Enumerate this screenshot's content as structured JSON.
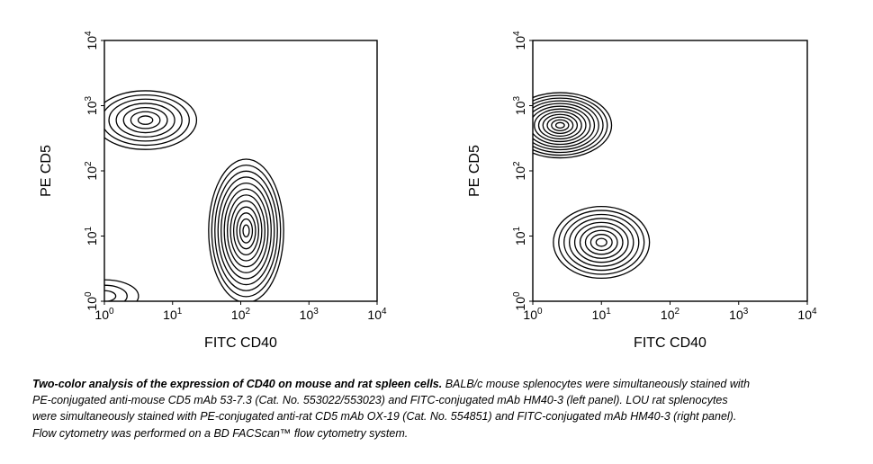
{
  "chart_data": [
    {
      "type": "contour",
      "panel": "left",
      "xlabel": "FITC CD40",
      "ylabel": "PE CD5",
      "x_scale": "log",
      "y_scale": "log",
      "xlim": [
        1,
        10000
      ],
      "ylim": [
        1,
        10000
      ],
      "x_ticks": [
        {
          "base": "10",
          "exp": "0",
          "value": 1
        },
        {
          "base": "10",
          "exp": "1",
          "value": 10
        },
        {
          "base": "10",
          "exp": "2",
          "value": 100
        },
        {
          "base": "10",
          "exp": "3",
          "value": 1000
        },
        {
          "base": "10",
          "exp": "4",
          "value": 10000
        }
      ],
      "y_ticks": [
        {
          "base": "10",
          "exp": "0",
          "value": 1
        },
        {
          "base": "10",
          "exp": "1",
          "value": 10
        },
        {
          "base": "10",
          "exp": "2",
          "value": 100
        },
        {
          "base": "10",
          "exp": "3",
          "value": 1000
        },
        {
          "base": "10",
          "exp": "4",
          "value": 10000
        }
      ],
      "populations": [
        {
          "center_x": 4,
          "center_y": 600,
          "spread_x": 0.75,
          "spread_y": 0.45,
          "levels": 7
        },
        {
          "center_x": 120,
          "center_y": 12,
          "spread_x": 0.55,
          "spread_y": 1.1,
          "levels": 12
        },
        {
          "center_x": 1,
          "center_y": 1.2,
          "spread_x": 0.5,
          "spread_y": 0.25,
          "levels": 3
        }
      ]
    },
    {
      "type": "contour",
      "panel": "right",
      "xlabel": "FITC CD40",
      "ylabel": "PE CD5",
      "x_scale": "log",
      "y_scale": "log",
      "xlim": [
        1,
        10000
      ],
      "ylim": [
        1,
        10000
      ],
      "x_ticks": [
        {
          "base": "10",
          "exp": "0",
          "value": 1
        },
        {
          "base": "10",
          "exp": "1",
          "value": 10
        },
        {
          "base": "10",
          "exp": "2",
          "value": 100
        },
        {
          "base": "10",
          "exp": "3",
          "value": 1000
        },
        {
          "base": "10",
          "exp": "4",
          "value": 10000
        }
      ],
      "y_ticks": [
        {
          "base": "10",
          "exp": "0",
          "value": 1
        },
        {
          "base": "10",
          "exp": "1",
          "value": 10
        },
        {
          "base": "10",
          "exp": "2",
          "value": 100
        },
        {
          "base": "10",
          "exp": "3",
          "value": 1000
        },
        {
          "base": "10",
          "exp": "4",
          "value": 10000
        }
      ],
      "populations": [
        {
          "center_x": 2.5,
          "center_y": 500,
          "spread_x": 0.75,
          "spread_y": 0.5,
          "levels": 12
        },
        {
          "center_x": 10,
          "center_y": 8,
          "spread_x": 0.7,
          "spread_y": 0.55,
          "levels": 9
        }
      ]
    }
  ],
  "caption": {
    "bold": "Two-color analysis of the expression of CD40 on mouse and rat spleen cells.",
    "text": " BALB/c mouse splenocytes were simultaneously stained with PE-conjugated anti-mouse CD5 mAb 53-7.3 (Cat. No. 553022/553023) and FITC-conjugated mAb HM40-3 (left panel). LOU rat splenocytes were simultaneously stained with PE-conjugated anti-rat CD5 mAb OX-19 (Cat. No. 554851) and FITC-conjugated mAb HM40-3 (right panel). Flow cytometry was performed on a BD FACScan™ flow cytometry system."
  }
}
